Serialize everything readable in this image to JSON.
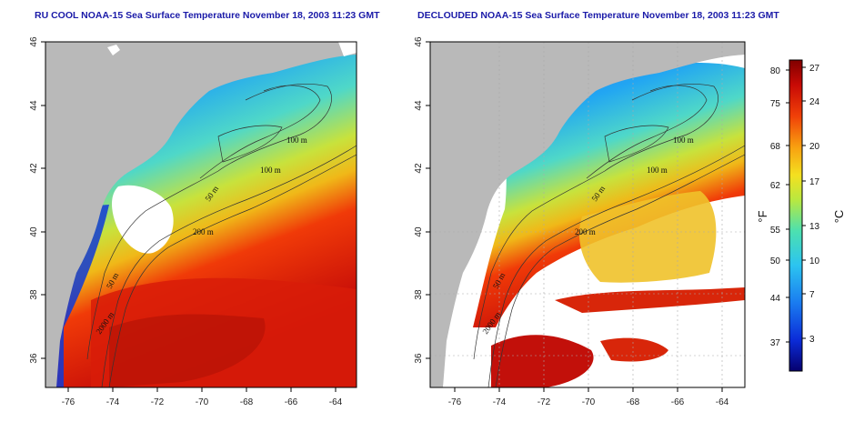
{
  "maps": [
    {
      "title": "RU COOL NOAA-15 Sea Surface Temperature November 18, 2003 11:23 GMT",
      "contour_labels": [
        "100 m",
        "100 m",
        "50 m",
        "200 m",
        "50 m",
        "2000 m"
      ]
    },
    {
      "title": "DECLOUDED NOAA-15 Sea Surface Temperature November 18, 2003 11:23 GMT",
      "contour_labels": [
        "100 m",
        "100 m",
        "50 m",
        "200 m",
        "50 m",
        "2000 m"
      ]
    }
  ],
  "axes": {
    "longitude_ticks": [
      "-76",
      "-74",
      "-72",
      "-70",
      "-68",
      "-66",
      "-64"
    ],
    "latitude_ticks": [
      "46",
      "44",
      "42",
      "40",
      "38",
      "36"
    ]
  },
  "colorbar": {
    "fahrenheit_label": "°F",
    "celsius_label": "°C",
    "fahrenheit_ticks": [
      "80",
      "75",
      "68",
      "62",
      "55",
      "50",
      "44",
      "37"
    ],
    "celsius_ticks": [
      "27",
      "24",
      "20",
      "17",
      "13",
      "10",
      "7",
      "3"
    ]
  },
  "colors": {
    "land": "#b9b9b9",
    "cloud": "#ffffff",
    "cold": "#0a0aa0",
    "warm": "#c80000",
    "title": "#1a1aa8"
  }
}
